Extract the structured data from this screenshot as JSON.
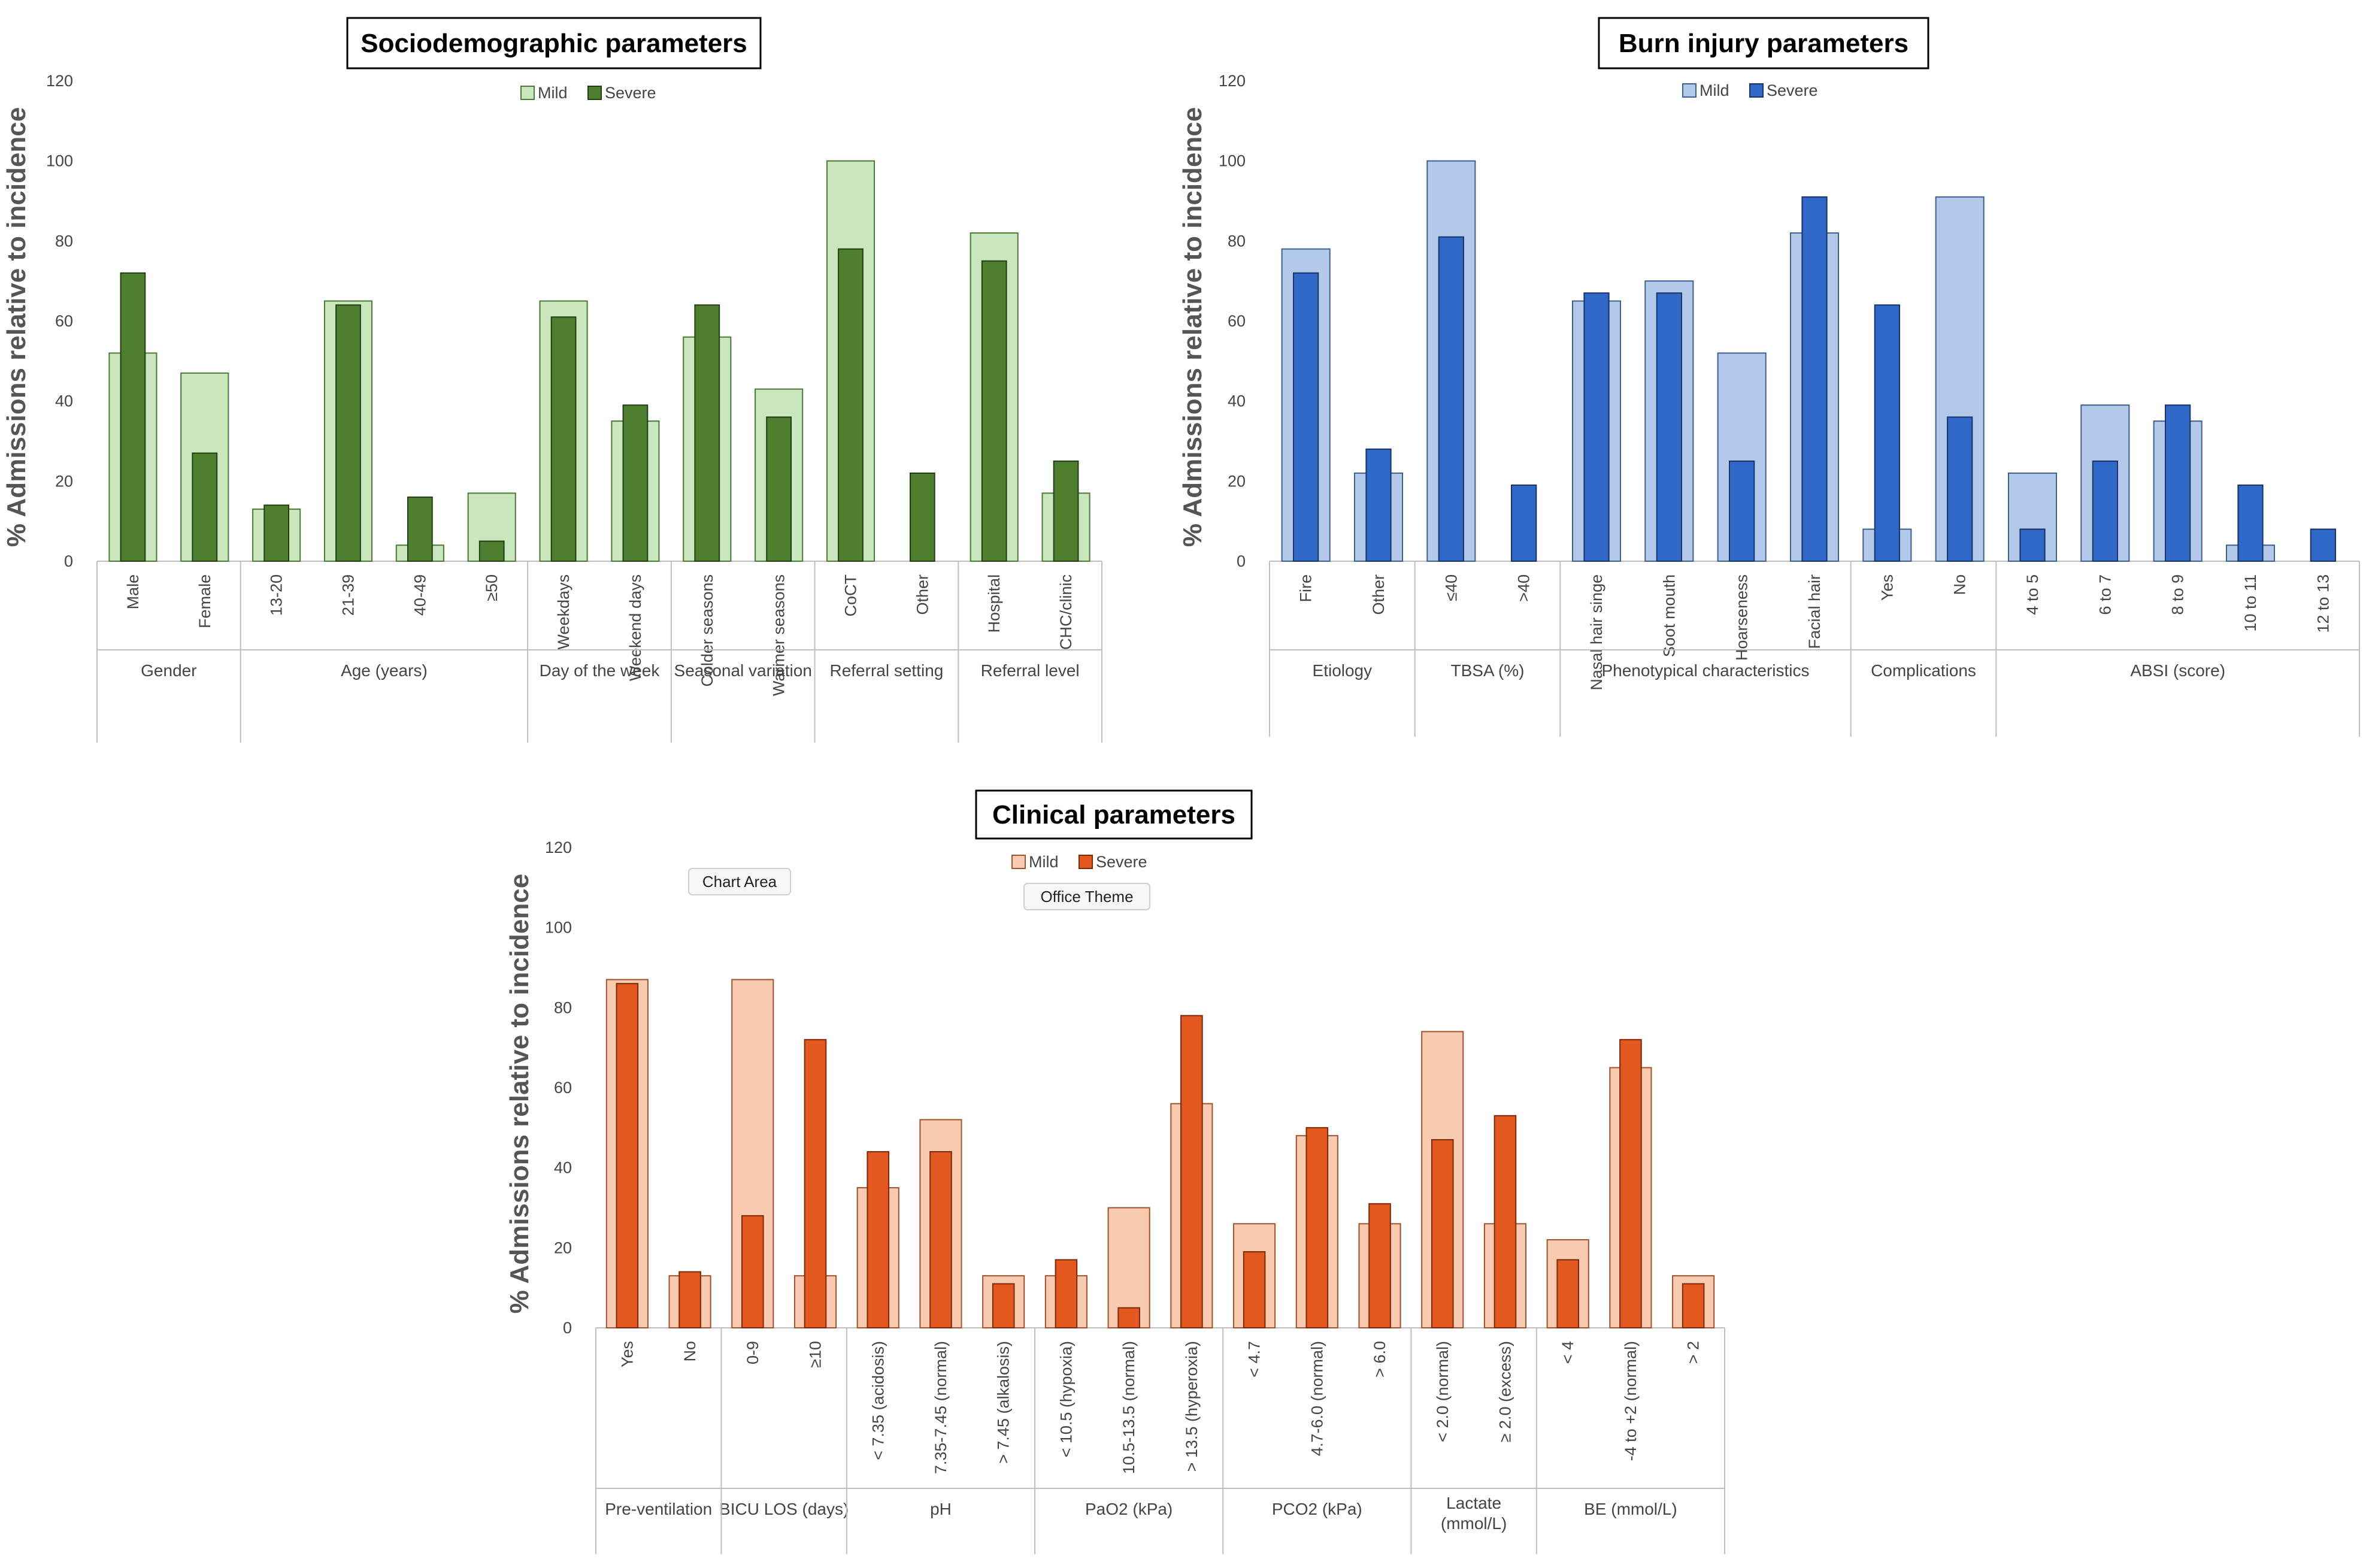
{
  "chart_data": [
    {
      "id": "socio",
      "type": "bar",
      "title": "Sociodemographic parameters",
      "ylabel": "% Admissions relative to incidence",
      "ylim": [
        0,
        120
      ],
      "yticks": [
        0,
        20,
        40,
        60,
        80,
        100,
        120
      ],
      "grid": false,
      "legend": "top-center",
      "colors": {
        "mild_fill": "#c9e6bd",
        "mild_stroke": "#4b7a34",
        "severe_fill": "#4e7f2e",
        "severe_stroke": "#223d13"
      },
      "series": [
        {
          "name": "Mild",
          "values": [
            52,
            47,
            13,
            65,
            4,
            17,
            65,
            35,
            56,
            43,
            100,
            0,
            82,
            17
          ]
        },
        {
          "name": "Severe",
          "values": [
            72,
            27,
            14,
            64,
            16,
            5,
            61,
            39,
            64,
            36,
            78,
            22,
            75,
            25
          ]
        }
      ],
      "groups": [
        {
          "label": "Gender",
          "categories": [
            "Male",
            "Female"
          ]
        },
        {
          "label": "Age (years)",
          "categories": [
            "13-20",
            "21-39",
            "40-49",
            "≥50"
          ]
        },
        {
          "label": "Day of the week",
          "categories": [
            "Weekdays",
            "Weekend days"
          ]
        },
        {
          "label": "Seasonal variation",
          "categories": [
            "Colder seasons",
            "Warmer seasons"
          ]
        },
        {
          "label": "Referral setting",
          "categories": [
            "CoCT",
            "Other"
          ]
        },
        {
          "label": "Referral level",
          "categories": [
            "Hospital",
            "CHC/clinic"
          ]
        }
      ]
    },
    {
      "id": "burn",
      "type": "bar",
      "title": "Burn injury parameters",
      "ylabel": "% Admissions relative to incidence",
      "ylim": [
        0,
        120
      ],
      "yticks": [
        0,
        20,
        40,
        60,
        80,
        100,
        120
      ],
      "grid": false,
      "legend": "top-center",
      "colors": {
        "mild_fill": "#b3c9e9",
        "mild_stroke": "#3d5e91",
        "severe_fill": "#2f68c7",
        "severe_stroke": "#1a3266"
      },
      "series": [
        {
          "name": "Mild",
          "values": [
            78,
            22,
            100,
            0,
            65,
            70,
            52,
            82,
            8,
            91,
            22,
            39,
            35,
            4,
            0
          ]
        },
        {
          "name": "Severe",
          "values": [
            72,
            28,
            81,
            19,
            67,
            67,
            25,
            91,
            64,
            36,
            8,
            25,
            39,
            19,
            8
          ]
        }
      ],
      "groups": [
        {
          "label": "Etiology",
          "categories": [
            "Fire",
            "Other"
          ]
        },
        {
          "label": "TBSA (%)",
          "categories": [
            "≤40",
            ">40"
          ]
        },
        {
          "label": "Phenotypical characteristics",
          "categories": [
            "Nasal hair singe",
            "Soot mouth",
            "Hoarseness",
            "Facial hair"
          ]
        },
        {
          "label": "Complications",
          "categories": [
            "Yes",
            "No"
          ]
        },
        {
          "label": "ABSI (score)",
          "categories": [
            "4 to 5",
            "6 to 7",
            "8 to 9",
            "10 to 11",
            "12 to 13"
          ]
        }
      ]
    },
    {
      "id": "clin",
      "type": "bar",
      "title": "Clinical parameters",
      "ylabel": "% Admissions relative to incidence",
      "ylim": [
        0,
        120
      ],
      "yticks": [
        0,
        20,
        40,
        60,
        80,
        100,
        120
      ],
      "grid": false,
      "legend": "top-center",
      "colors": {
        "mild_fill": "#f8cbb0",
        "mild_stroke": "#a0522d",
        "severe_fill": "#e2581e",
        "severe_stroke": "#7a2a08"
      },
      "series": [
        {
          "name": "Mild",
          "values": [
            87,
            13,
            87,
            13,
            35,
            52,
            13,
            13,
            30,
            56,
            26,
            48,
            26,
            74,
            26,
            22,
            65,
            13
          ]
        },
        {
          "name": "Severe",
          "values": [
            86,
            14,
            28,
            72,
            44,
            44,
            11,
            17,
            5,
            78,
            19,
            50,
            31,
            47,
            53,
            17,
            72,
            11
          ]
        }
      ],
      "groups": [
        {
          "label": "Pre-ventilation",
          "categories": [
            "Yes",
            "No"
          ]
        },
        {
          "label": "BICU LOS (days)",
          "categories": [
            "0-9",
            "≥10"
          ]
        },
        {
          "label": "pH",
          "categories": [
            "< 7.35 (acidosis)",
            "7.35-7.45 (normal)",
            "> 7.45 (alkalosis)"
          ]
        },
        {
          "label": "PaO2 (kPa)",
          "categories": [
            "< 10.5 (hypoxia)",
            "10.5-13.5 (normal)",
            "> 13.5 (hyperoxia)"
          ]
        },
        {
          "label": "PCO2 (kPa)",
          "categories": [
            "< 4.7",
            "4.7-6.0 (normal)",
            "> 6.0"
          ]
        },
        {
          "label": "Lactate (mmol/L)",
          "lines": [
            "Lactate",
            "(mmol/L)"
          ],
          "categories": [
            "< 2.0 (normal)",
            "≥ 2.0 (excess)"
          ]
        },
        {
          "label": "BE (mmol/L)",
          "categories": [
            "< 4",
            "-4 to +2 (normal)",
            "> 2"
          ]
        }
      ],
      "tooltips": [
        "Chart Area",
        "Office Theme"
      ]
    }
  ]
}
